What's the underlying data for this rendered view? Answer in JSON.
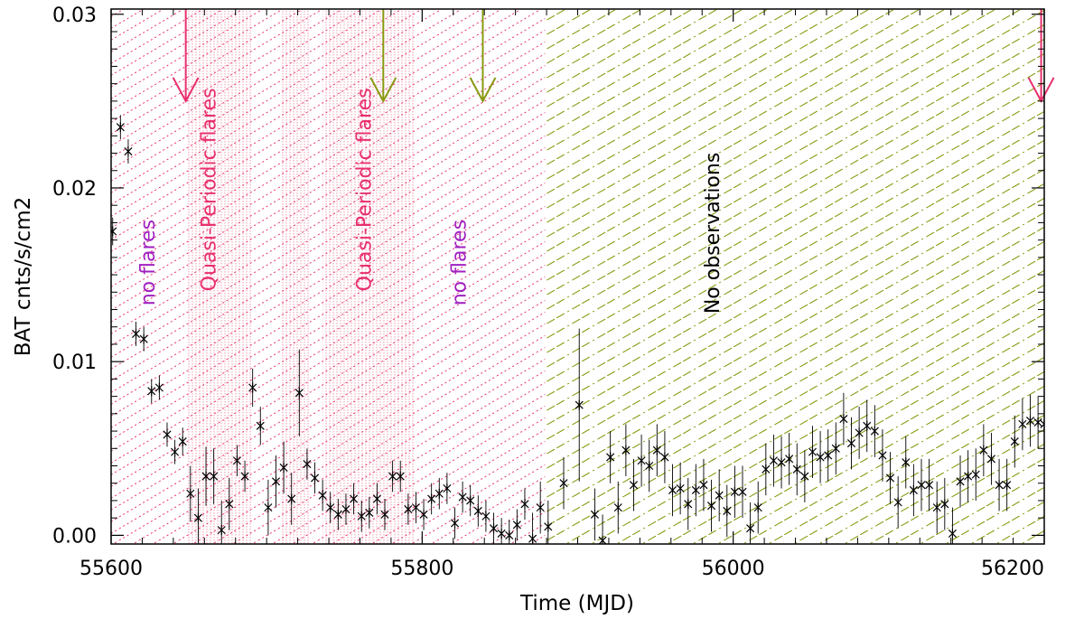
{
  "chart_data": {
    "type": "scatter",
    "xlabel": "Time (MJD)",
    "ylabel": "BAT cnts/s/cm2",
    "xlim": [
      55600,
      56200
    ],
    "ylim": [
      -0.0005,
      0.0303
    ],
    "xticks": [
      55600,
      55800,
      56000,
      56200
    ],
    "xtick_labels": [
      "55600",
      "55800",
      "56000",
      "56200"
    ],
    "yticks": [
      0.0,
      0.01,
      0.02,
      0.03
    ],
    "ytick_labels": [
      "0.00",
      "0.01",
      "0.02",
      "0.03"
    ],
    "grid": false,
    "colors": {
      "pink": "#e8306e",
      "olive": "#8a9a12",
      "magenta": "#a020c0",
      "points": "#000000",
      "dense_band": "#d81848"
    },
    "shaded_regions": [
      {
        "x0": 55600,
        "x1": 55879,
        "pattern": "pink-dotted",
        "color": "#e8306e"
      },
      {
        "x0": 55879,
        "x1": 56200,
        "pattern": "olive-dashed",
        "color": "#8a9a12"
      }
    ],
    "dense_bands": [
      [
        55649,
        55690
      ],
      [
        55710,
        55727
      ],
      [
        55736,
        55795
      ]
    ],
    "annotations": [
      {
        "text": "no flares",
        "x": 55628,
        "y": 0.0157,
        "color": "#a020c0"
      },
      {
        "text": "Quasi-Periodic flares",
        "x": 55667,
        "y": 0.0199,
        "color": "#e8306e"
      },
      {
        "text": "Quasi-Periodic flares",
        "x": 55767,
        "y": 0.0199,
        "color": "#e8306e"
      },
      {
        "text": "no flares",
        "x": 55828,
        "y": 0.0157,
        "color": "#a020c0"
      },
      {
        "text": "No observations",
        "x": 55991,
        "y": 0.0174,
        "color": "#000000"
      }
    ],
    "arrows": [
      {
        "x": 55648,
        "color": "#e8306e"
      },
      {
        "x": 55775,
        "color": "#8a9a12"
      },
      {
        "x": 55839,
        "color": "#8a9a12"
      },
      {
        "x": 56198,
        "color": "#e8306e"
      }
    ],
    "arrow_y_top": 0.0303,
    "arrow_y_tip": 0.025,
    "series": [
      {
        "x": [
          55601,
          55606,
          55611,
          55616,
          55621,
          55626,
          55631,
          55636,
          55641,
          55646,
          55651,
          55656,
          55661,
          55666,
          55671,
          55676,
          55681,
          55686,
          55691,
          55696,
          55701,
          55706,
          55711,
          55716,
          55721,
          55726,
          55731,
          55736,
          55741,
          55746,
          55751,
          55756,
          55761,
          55766,
          55771,
          55776,
          55781,
          55786,
          55791,
          55796,
          55801,
          55806,
          55811,
          55816,
          55821,
          55826,
          55831,
          55836,
          55841,
          55846,
          55851,
          55856,
          55861,
          55866,
          55871,
          55876,
          55881,
          55891,
          55901,
          55911,
          55916,
          55921,
          55926,
          55931,
          55936,
          55941,
          55946,
          55951,
          55956,
          55961,
          55966,
          55971,
          55976,
          55981,
          55986,
          55991,
          55996,
          56001,
          56006,
          56011,
          56016,
          56021,
          56026,
          56031,
          56036,
          56041,
          56046,
          56051,
          56056,
          56061,
          56066,
          56071,
          56076,
          56081,
          56086,
          56091,
          56096,
          56101,
          56106,
          56111,
          56116,
          56121,
          56126,
          56131,
          56136,
          56141,
          56146,
          56151,
          56156,
          56161,
          56166,
          56171,
          56176,
          56181,
          56186,
          56191,
          56196,
          56200
        ],
        "y": [
          0.0175,
          0.0235,
          0.0221,
          0.0116,
          0.0113,
          0.0083,
          0.0085,
          0.0058,
          0.0048,
          0.0054,
          0.0024,
          0.001,
          0.0034,
          0.0034,
          0.0003,
          0.0018,
          0.0043,
          0.0034,
          0.0085,
          0.0063,
          0.0016,
          0.0031,
          0.0039,
          0.0021,
          0.0082,
          0.0041,
          0.0033,
          0.0023,
          0.0016,
          0.0012,
          0.0015,
          0.0021,
          0.0011,
          0.0013,
          0.0021,
          0.0012,
          0.0034,
          0.0034,
          0.0015,
          0.0016,
          0.0012,
          0.0021,
          0.0024,
          0.0027,
          0.0007,
          0.0022,
          0.002,
          0.0014,
          0.0011,
          0.0004,
          0.0001,
          0.0,
          0.0006,
          0.0018,
          -0.0002,
          0.0016,
          0.0005,
          0.003,
          0.0075,
          0.0012,
          -0.0003,
          0.0045,
          0.0016,
          0.0049,
          0.0029,
          0.0043,
          0.004,
          0.0049,
          0.0045,
          0.0026,
          0.0027,
          0.0018,
          0.0026,
          0.0029,
          0.0017,
          0.0023,
          0.0014,
          0.0025,
          0.0025,
          0.0004,
          0.0016,
          0.0038,
          0.0043,
          0.0042,
          0.0044,
          0.0038,
          0.0034,
          0.0048,
          0.0045,
          0.0046,
          0.005,
          0.0067,
          0.0053,
          0.0059,
          0.0063,
          0.006,
          0.0046,
          0.0033,
          0.0019,
          0.0042,
          0.0026,
          0.0029,
          0.0029,
          0.0016,
          0.0018,
          0.0001,
          0.0031,
          0.0034,
          0.0035,
          0.0049,
          0.0044,
          0.0029,
          0.0029,
          0.0054,
          0.0064,
          0.0066,
          0.0065,
          0.0064
        ],
        "err": [
          0.0008,
          0.0007,
          0.0007,
          0.0007,
          0.0007,
          0.0007,
          0.0007,
          0.0007,
          0.0007,
          0.0008,
          0.0016,
          0.0017,
          0.0017,
          0.0016,
          0.0017,
          0.0015,
          0.0009,
          0.0009,
          0.0011,
          0.0011,
          0.0016,
          0.0015,
          0.0015,
          0.0015,
          0.0025,
          0.0009,
          0.0009,
          0.0009,
          0.0009,
          0.0009,
          0.0009,
          0.0009,
          0.0009,
          0.0009,
          0.0009,
          0.0009,
          0.0009,
          0.0009,
          0.0009,
          0.0009,
          0.0009,
          0.0009,
          0.0009,
          0.0009,
          0.0009,
          0.0009,
          0.0009,
          0.0009,
          0.0009,
          0.0009,
          0.0009,
          0.0009,
          0.0009,
          0.0009,
          0.0015,
          0.0015,
          0.0015,
          0.0015,
          0.0044,
          0.0015,
          0.0015,
          0.0015,
          0.0015,
          0.0015,
          0.0015,
          0.0015,
          0.0015,
          0.0015,
          0.0015,
          0.0015,
          0.0015,
          0.0015,
          0.0015,
          0.0015,
          0.0015,
          0.0015,
          0.0015,
          0.0015,
          0.0015,
          0.0015,
          0.0015,
          0.0015,
          0.0015,
          0.0015,
          0.0015,
          0.0015,
          0.0015,
          0.0015,
          0.0015,
          0.0015,
          0.0015,
          0.0015,
          0.0015,
          0.0015,
          0.0015,
          0.0015,
          0.0015,
          0.0015,
          0.0015,
          0.0015,
          0.0015,
          0.0015,
          0.0015,
          0.0015,
          0.0015,
          0.0015,
          0.0015,
          0.0015,
          0.0015,
          0.0015,
          0.0015,
          0.0015,
          0.0015,
          0.0015,
          0.0015,
          0.0015,
          0.0015,
          0.0015
        ]
      }
    ]
  }
}
